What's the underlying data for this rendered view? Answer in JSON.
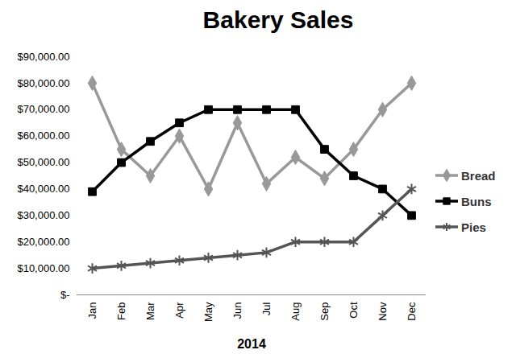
{
  "chart_data": {
    "type": "line",
    "title": "Bakery Sales",
    "x_label": "2014",
    "categories": [
      "Jan",
      "Feb",
      "Mar",
      "Apr",
      "May",
      "Jun",
      "Jul",
      "Aug",
      "Sep",
      "Oct",
      "Nov",
      "Dec"
    ],
    "series": [
      {
        "name": "Bread",
        "color": "#999999",
        "marker": "diamond",
        "values": [
          80000,
          55000,
          45000,
          60000,
          40000,
          65000,
          42000,
          52000,
          44000,
          55000,
          70000,
          80000
        ]
      },
      {
        "name": "Buns",
        "color": "#000000",
        "marker": "square",
        "values": [
          39000,
          50000,
          58000,
          65000,
          70000,
          70000,
          70000,
          70000,
          55000,
          45000,
          40000,
          30000
        ]
      },
      {
        "name": "Pies",
        "color": "#555555",
        "marker": "asterisk",
        "values": [
          10000,
          11000,
          12000,
          13000,
          14000,
          15000,
          16000,
          20000,
          20000,
          20000,
          30000,
          40000
        ]
      }
    ],
    "ylim": [
      0,
      90000
    ],
    "yticks": [
      {
        "value": 0,
        "label": "$-"
      },
      {
        "value": 10000,
        "label": "$10,000.00"
      },
      {
        "value": 20000,
        "label": "$20,000.00"
      },
      {
        "value": 30000,
        "label": "$30,000.00"
      },
      {
        "value": 40000,
        "label": "$40,000.00"
      },
      {
        "value": 50000,
        "label": "$50,000.00"
      },
      {
        "value": 60000,
        "label": "$60,000.00"
      },
      {
        "value": 70000,
        "label": "$70,000.00"
      },
      {
        "value": 80000,
        "label": "$80,000.00"
      },
      {
        "value": 90000,
        "label": "$90,000.00"
      }
    ],
    "grid": false,
    "legend": "right"
  }
}
